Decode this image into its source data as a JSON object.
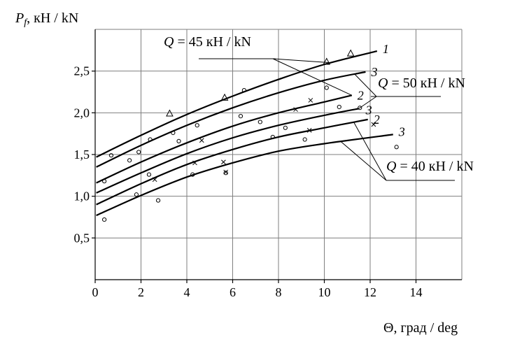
{
  "chart_data": {
    "type": "scatter",
    "ylabel": {
      "symbol": "P",
      "sub": "f",
      "units": ", кН / kN"
    },
    "xlabel": "Θ, град / deg",
    "xlim": [
      0,
      16
    ],
    "ylim": [
      0,
      3.0
    ],
    "x_ticks": [
      0,
      2,
      4,
      6,
      8,
      10,
      12,
      14
    ],
    "y_ticks": [
      0.5,
      1.0,
      1.5,
      2.0,
      2.5
    ],
    "x_tick_labels": [
      "0",
      "2",
      "4",
      "6",
      "8",
      "10",
      "12",
      "14"
    ],
    "y_tick_labels": [
      "0,5",
      "1,0",
      "1,5",
      "2,0",
      "2,5"
    ],
    "grid": true,
    "curves": [
      {
        "label": "1",
        "points": [
          [
            0.05,
            1.47
          ],
          [
            2,
            1.73
          ],
          [
            4,
            1.98
          ],
          [
            6,
            2.2
          ],
          [
            8,
            2.4
          ],
          [
            10,
            2.58
          ],
          [
            12.3,
            2.74
          ]
        ]
      },
      {
        "label": "3",
        "points": [
          [
            0.05,
            1.35
          ],
          [
            2,
            1.61
          ],
          [
            4,
            1.85
          ],
          [
            6,
            2.06
          ],
          [
            8,
            2.24
          ],
          [
            10,
            2.39
          ],
          [
            11.8,
            2.49
          ]
        ]
      },
      {
        "label": "2",
        "points": [
          [
            0.05,
            1.16
          ],
          [
            2,
            1.41
          ],
          [
            4,
            1.64
          ],
          [
            6,
            1.84
          ],
          [
            8,
            2.0
          ],
          [
            10,
            2.13
          ],
          [
            11.2,
            2.21
          ]
        ]
      },
      {
        "label": "3",
        "points": [
          [
            0.05,
            1.04
          ],
          [
            2,
            1.28
          ],
          [
            4,
            1.51
          ],
          [
            6,
            1.7
          ],
          [
            8,
            1.85
          ],
          [
            10,
            1.97
          ],
          [
            11.5,
            2.05
          ]
        ]
      },
      {
        "label": "2",
        "points": [
          [
            0.05,
            0.9
          ],
          [
            2,
            1.15
          ],
          [
            4,
            1.38
          ],
          [
            6,
            1.56
          ],
          [
            8,
            1.71
          ],
          [
            10,
            1.82
          ],
          [
            11.9,
            1.92
          ]
        ]
      },
      {
        "label": "3",
        "points": [
          [
            0.05,
            0.77
          ],
          [
            2,
            1.01
          ],
          [
            4,
            1.23
          ],
          [
            6,
            1.4
          ],
          [
            8,
            1.54
          ],
          [
            10,
            1.63
          ],
          [
            13.0,
            1.74
          ]
        ]
      }
    ],
    "markers": {
      "triangle": [
        [
          3.25,
          1.99
        ],
        [
          5.65,
          2.18
        ],
        [
          10.1,
          2.61
        ],
        [
          11.15,
          2.71
        ]
      ],
      "circle": [
        [
          0.4,
          0.72
        ],
        [
          0.4,
          1.18
        ],
        [
          0.7,
          1.49
        ],
        [
          1.5,
          1.43
        ],
        [
          1.8,
          1.02
        ],
        [
          1.9,
          1.53
        ],
        [
          2.35,
          1.26
        ],
        [
          2.4,
          1.68
        ],
        [
          2.75,
          0.95
        ],
        [
          3.4,
          1.76
        ],
        [
          3.65,
          1.66
        ],
        [
          4.25,
          1.26
        ],
        [
          4.45,
          1.85
        ],
        [
          5.7,
          1.28
        ],
        [
          6.35,
          1.96
        ],
        [
          6.5,
          2.27
        ],
        [
          7.2,
          1.89
        ],
        [
          7.75,
          1.71
        ],
        [
          8.3,
          1.82
        ],
        [
          9.15,
          1.68
        ],
        [
          10.1,
          2.3
        ],
        [
          10.65,
          2.07
        ],
        [
          11.55,
          2.06
        ],
        [
          13.15,
          1.59
        ]
      ],
      "cross": [
        [
          2.6,
          1.2
        ],
        [
          4.35,
          1.4
        ],
        [
          4.65,
          1.67
        ],
        [
          5.6,
          1.41
        ],
        [
          5.7,
          1.29
        ],
        [
          8.75,
          2.04
        ],
        [
          9.35,
          1.79
        ],
        [
          9.4,
          2.15
        ],
        [
          12.15,
          1.86
        ]
      ]
    },
    "annotations": [
      {
        "text": "Q = 45 кН / kN",
        "targets": [
          "1",
          "2"
        ]
      },
      {
        "text": "Q = 50 кН / kN",
        "targets": [
          "3",
          "3"
        ]
      },
      {
        "text": "Q = 40 кН / kN",
        "targets": [
          "3",
          "2"
        ]
      }
    ]
  }
}
